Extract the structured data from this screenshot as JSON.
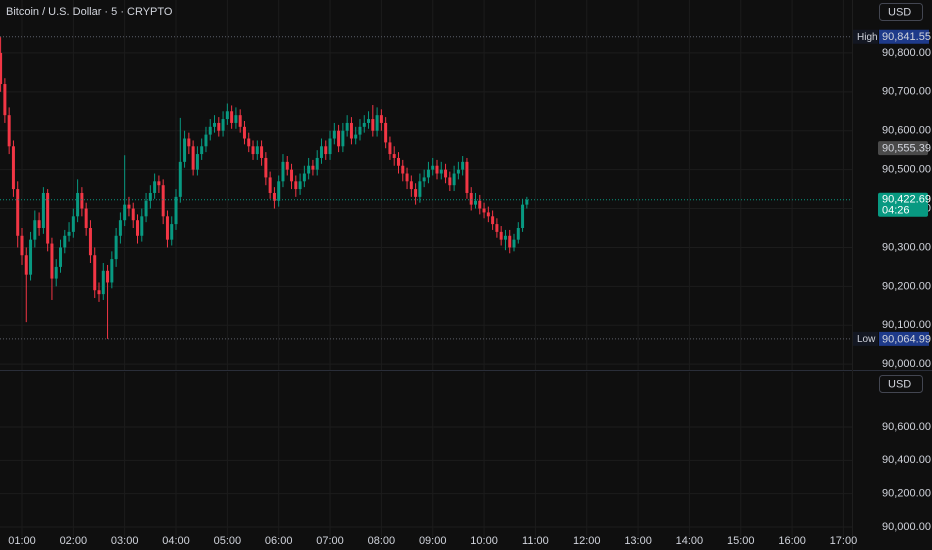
{
  "header": {
    "title": "Bitcoin / U.S. Dollar · 5 · CRYPTO"
  },
  "chart_data": [
    {
      "type": "candlestick",
      "currency_button": "USD",
      "up_color": "#089981",
      "down_color": "#f23645",
      "x": [
        35,
        40,
        45,
        50,
        55,
        60,
        65,
        70,
        75,
        80,
        85,
        90,
        95,
        100,
        105,
        110,
        115,
        120,
        125,
        130,
        135,
        140,
        145,
        150,
        155,
        160,
        165,
        170,
        175,
        180,
        185,
        190,
        195,
        200,
        205,
        210,
        215,
        220,
        225,
        230,
        235,
        240,
        245,
        250,
        255,
        260,
        265,
        270,
        275,
        280,
        285,
        290,
        295,
        300,
        305,
        310,
        315,
        320,
        325,
        330,
        335,
        340,
        345,
        350,
        355,
        360,
        365,
        370,
        375,
        380,
        385,
        390,
        395,
        400,
        405,
        410,
        415,
        420,
        425,
        430,
        435,
        440,
        445,
        450,
        455,
        460,
        465,
        470,
        475,
        480,
        485,
        490,
        495,
        500,
        505,
        510,
        515,
        520,
        525,
        530,
        535,
        540,
        545,
        550,
        555,
        560,
        565,
        570,
        575,
        580,
        585,
        590,
        595,
        600,
        605,
        610,
        615,
        620,
        625,
        630,
        635,
        640,
        645,
        650
      ],
      "open": [
        90800,
        90720,
        90640,
        90560,
        90450,
        90330,
        90280,
        90230,
        90320,
        90370,
        90350,
        90440,
        90310,
        90220,
        90250,
        90300,
        90330,
        90340,
        90380,
        90440,
        90400,
        90350,
        90280,
        90190,
        90180,
        90240,
        90210,
        90270,
        90330,
        90370,
        90410,
        90400,
        90370,
        90330,
        90380,
        90420,
        90440,
        90470,
        90460,
        90380,
        90320,
        90360,
        90430,
        90520,
        90580,
        90560,
        90500,
        90540,
        90560,
        90590,
        90610,
        90620,
        90600,
        90630,
        90650,
        90620,
        90640,
        90610,
        90580,
        90560,
        90540,
        90560,
        90530,
        90480,
        90440,
        90420,
        90470,
        90520,
        90500,
        90470,
        90450,
        90470,
        90490,
        90510,
        90500,
        90530,
        90560,
        90540,
        90580,
        90600,
        90560,
        90600,
        90620,
        90580,
        90590,
        90610,
        90620,
        90630,
        90600,
        90640,
        90620,
        90570,
        90540,
        90530,
        90510,
        90490,
        90470,
        90450,
        90430,
        90470,
        90480,
        90500,
        90510,
        90490,
        90500,
        90480,
        90460,
        90490,
        90500,
        90520,
        90440,
        90410,
        90420,
        90400,
        90390,
        90380,
        90360,
        90340,
        90320,
        90330,
        90300,
        90320,
        90350,
        90410
      ],
      "high": [
        90841.55,
        90735,
        90660,
        90575,
        90470,
        90350,
        90300,
        90340,
        90395,
        90390,
        90455,
        90450,
        90325,
        90270,
        90320,
        90345,
        90365,
        90400,
        90475,
        90455,
        90415,
        90370,
        90300,
        90210,
        90260,
        90255,
        90290,
        90350,
        90390,
        90537,
        90430,
        90415,
        90385,
        90400,
        90440,
        90460,
        90490,
        90485,
        90475,
        90395,
        90380,
        90450,
        90633,
        90600,
        90595,
        90575,
        90560,
        90580,
        90610,
        90630,
        90640,
        90635,
        90650,
        90670,
        90665,
        90660,
        90655,
        90625,
        90595,
        90575,
        90575,
        90575,
        90545,
        90495,
        90455,
        90485,
        90540,
        90535,
        90515,
        90485,
        90490,
        90510,
        90530,
        90525,
        90550,
        90580,
        90575,
        90600,
        90620,
        90615,
        90620,
        90640,
        90635,
        90610,
        90630,
        90640,
        90650,
        90666,
        90660,
        90655,
        90635,
        90585,
        90560,
        90545,
        90525,
        90505,
        90485,
        90465,
        90490,
        90500,
        90520,
        90530,
        90525,
        90520,
        90515,
        90495,
        90510,
        90520,
        90535,
        90530,
        90455,
        90440,
        90435,
        90415,
        90405,
        90395,
        90375,
        90355,
        90345,
        90345,
        90335,
        90365,
        90425,
        90430
      ],
      "low": [
        90700,
        90620,
        90540,
        90430,
        90300,
        90255,
        90108,
        90215,
        90300,
        90330,
        90335,
        90290,
        90165,
        90200,
        90235,
        90285,
        90315,
        90325,
        90365,
        90380,
        90330,
        90260,
        90170,
        90160,
        90165,
        90064.99,
        90195,
        90250,
        90310,
        90355,
        90380,
        90350,
        90310,
        90315,
        90365,
        90400,
        90425,
        90440,
        90360,
        90300,
        90305,
        90345,
        90415,
        90505,
        90540,
        90485,
        90485,
        90525,
        90545,
        90575,
        90595,
        90585,
        90585,
        90615,
        90605,
        90605,
        90595,
        90565,
        90545,
        90525,
        90525,
        90510,
        90460,
        90425,
        90400,
        90405,
        90455,
        90485,
        90450,
        90430,
        90435,
        90455,
        90475,
        90485,
        90485,
        90515,
        90525,
        90525,
        90565,
        90545,
        90545,
        90585,
        90565,
        90565,
        90575,
        90595,
        90605,
        90585,
        90585,
        90600,
        90555,
        90525,
        90510,
        90490,
        90470,
        90450,
        90430,
        90410,
        90415,
        90455,
        90465,
        90485,
        90475,
        90475,
        90465,
        90445,
        90445,
        90475,
        90485,
        90425,
        90395,
        90400,
        90385,
        90375,
        90365,
        90345,
        90325,
        90305,
        90293,
        90285,
        90290,
        90310,
        90340,
        90400
      ],
      "close": [
        90720,
        90640,
        90560,
        90450,
        90330,
        90280,
        90230,
        90320,
        90370,
        90350,
        90440,
        90310,
        90220,
        90250,
        90300,
        90330,
        90340,
        90380,
        90440,
        90400,
        90350,
        90280,
        90190,
        90180,
        90240,
        90210,
        90270,
        90330,
        90370,
        90410,
        90400,
        90370,
        90330,
        90380,
        90420,
        90440,
        90470,
        90460,
        90380,
        90320,
        90360,
        90430,
        90520,
        90580,
        90560,
        90500,
        90540,
        90560,
        90590,
        90610,
        90620,
        90600,
        90630,
        90650,
        90620,
        90640,
        90610,
        90580,
        90560,
        90540,
        90560,
        90530,
        90480,
        90440,
        90420,
        90470,
        90520,
        90500,
        90470,
        90450,
        90470,
        90490,
        90510,
        90500,
        90530,
        90560,
        90540,
        90580,
        90600,
        90560,
        90600,
        90620,
        90580,
        90590,
        90610,
        90620,
        90630,
        90600,
        90640,
        90620,
        90570,
        90540,
        90530,
        90510,
        90490,
        90470,
        90450,
        90430,
        90470,
        90480,
        90500,
        90510,
        90490,
        90500,
        90480,
        90460,
        90490,
        90500,
        90520,
        90440,
        90410,
        90420,
        90400,
        90390,
        90380,
        90360,
        90340,
        90320,
        90330,
        90300,
        90320,
        90350,
        90410,
        90422.69
      ],
      "xlim": [
        34.3,
        1030
      ],
      "xticks": [
        {
          "value": 60,
          "label": "01:00"
        },
        {
          "value": 120,
          "label": "02:00"
        },
        {
          "value": 180,
          "label": "03:00"
        },
        {
          "value": 240,
          "label": "04:00"
        },
        {
          "value": 300,
          "label": "05:00"
        },
        {
          "value": 360,
          "label": "06:00"
        },
        {
          "value": 420,
          "label": "07:00"
        },
        {
          "value": 480,
          "label": "08:00"
        },
        {
          "value": 540,
          "label": "09:00"
        },
        {
          "value": 600,
          "label": "10:00"
        },
        {
          "value": 660,
          "label": "11:00"
        },
        {
          "value": 720,
          "label": "12:00"
        },
        {
          "value": 780,
          "label": "13:00"
        },
        {
          "value": 840,
          "label": "14:00"
        },
        {
          "value": 900,
          "label": "15:00"
        },
        {
          "value": 960,
          "label": "16:00"
        },
        {
          "value": 1020,
          "label": "17:00"
        }
      ],
      "ylim": [
        89985,
        90936
      ],
      "yticks": [
        {
          "value": 90000,
          "label": "90,000.00"
        },
        {
          "value": 90100,
          "label": "90,100.00"
        },
        {
          "value": 90200,
          "label": "90,200.00"
        },
        {
          "value": 90300,
          "label": "90,300.00"
        },
        {
          "value": 90400,
          "label": "90,400.00"
        },
        {
          "value": 90500,
          "label": "90,500.00"
        },
        {
          "value": 90600,
          "label": "90,600.00"
        },
        {
          "value": 90700,
          "label": "90,700.00"
        },
        {
          "value": 90800,
          "label": "90,800.00"
        }
      ],
      "grid": true,
      "high_marker": {
        "label": "High",
        "value": 90841.55,
        "value_label": "90,841.55"
      },
      "low_marker": {
        "label": "Low",
        "value": 90064.99,
        "value_label": "90,064.99"
      },
      "reference_price": {
        "value": 90555.39,
        "value_label": "90,555.39"
      },
      "last_price": {
        "value": 90422.69,
        "value_label": "90,422.69",
        "countdown": "04:26"
      }
    },
    {
      "type": "pane",
      "currency_button": "USD",
      "ylim": [
        89940,
        90930
      ],
      "yticks": [
        {
          "value": 90000,
          "label": "90,000.00"
        },
        {
          "value": 90200,
          "label": "90,200.00"
        },
        {
          "value": 90400,
          "label": "90,400.00"
        },
        {
          "value": 90600,
          "label": "90,600.00"
        }
      ],
      "grid": true
    }
  ]
}
